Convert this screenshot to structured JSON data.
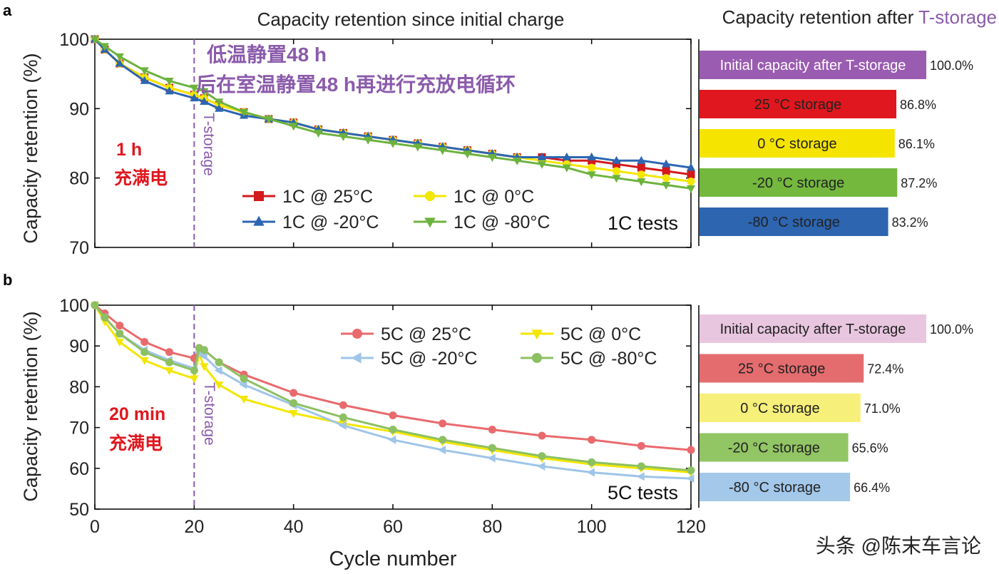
{
  "panel_a": {
    "label": "a",
    "title": "Capacity retention since initial charge",
    "ylabel": "Capacity retention (%)",
    "yticks": [
      "100",
      "90",
      "80",
      "70"
    ],
    "xticks": [
      "0",
      "20",
      "40",
      "60",
      "80",
      "100",
      "120"
    ],
    "marker_label": "T-storage",
    "tests_label": "1C tests",
    "overlay_line1": "低温静置48 h",
    "overlay_line2": "后在室温静置48 h再进行充放电循环",
    "charge_line1": "1 h",
    "charge_line2": "充满电"
  },
  "panel_b": {
    "label": "b",
    "ylabel": "Capacity retention (%)",
    "xlabel": "Cycle number",
    "yticks": [
      "100",
      "90",
      "80",
      "70",
      "60",
      "50"
    ],
    "xticks": [
      "0",
      "20",
      "40",
      "60",
      "80",
      "100",
      "120"
    ],
    "marker_label": "T-storage",
    "tests_label": "5C tests",
    "charge_line1": "20 min",
    "charge_line2": "充满电"
  },
  "bars_header": {
    "prefix": "Capacity retention after ",
    "highlight": "T-storage",
    "highlight_color": "#8b5bab"
  },
  "watermark": "头条 @陈末车言论",
  "chart_data": [
    {
      "type": "line",
      "title": "Capacity retention since initial charge",
      "xlabel": "",
      "ylabel": "Capacity retention (%)",
      "xlim": [
        0,
        120
      ],
      "ylim": [
        70,
        100
      ],
      "grid": false,
      "legend": "bottom-center",
      "vline_x": 20,
      "series": [
        {
          "name": "1C @  25°C",
          "color": "#d3191c",
          "marker": "square",
          "x": [
            0,
            2,
            5,
            10,
            15,
            20,
            22,
            25,
            30,
            35,
            40,
            45,
            50,
            55,
            60,
            65,
            70,
            75,
            80,
            85,
            90,
            95,
            100,
            105,
            110,
            115,
            120
          ],
          "y": [
            100,
            98.5,
            96.5,
            94.5,
            93,
            92,
            91.5,
            90.5,
            89.5,
            88.5,
            88,
            87,
            86.5,
            86,
            85.5,
            85,
            84.5,
            84,
            83.5,
            83,
            83,
            82.5,
            82.5,
            82,
            81.5,
            81,
            80.5
          ]
        },
        {
          "name": "1C @    0°C",
          "color": "#f3e600",
          "marker": "circle",
          "x": [
            0,
            2,
            5,
            10,
            15,
            20,
            22,
            25,
            30,
            35,
            40,
            45,
            50,
            55,
            60,
            65,
            70,
            75,
            80,
            85,
            90,
            95,
            100,
            105,
            110,
            115,
            120
          ],
          "y": [
            100,
            98.5,
            96.5,
            94.5,
            93,
            92,
            91.5,
            90.5,
            89.5,
            88.5,
            88,
            87,
            86.5,
            86,
            85.5,
            85,
            84.5,
            84,
            83.5,
            83,
            82.5,
            82,
            81.5,
            81,
            80.5,
            80,
            79.5
          ]
        },
        {
          "name": "1C @ -20°C",
          "color": "#2c66b1",
          "marker": "triangle-up",
          "x": [
            0,
            2,
            5,
            10,
            15,
            20,
            22,
            25,
            30,
            35,
            40,
            45,
            50,
            55,
            60,
            65,
            70,
            75,
            80,
            85,
            90,
            95,
            100,
            105,
            110,
            115,
            120
          ],
          "y": [
            100,
            98.5,
            96.5,
            94,
            92.5,
            91.5,
            91,
            90,
            89,
            88.5,
            88,
            87,
            86.5,
            86,
            85.5,
            85,
            84.5,
            84,
            83.5,
            83,
            83,
            83,
            83,
            82.5,
            82.5,
            82,
            81.5
          ]
        },
        {
          "name": "1C @ -80°C",
          "color": "#6cb33e",
          "marker": "triangle-down",
          "x": [
            0,
            2,
            5,
            10,
            15,
            20,
            22,
            25,
            30,
            35,
            40,
            45,
            50,
            55,
            60,
            65,
            70,
            75,
            80,
            85,
            90,
            95,
            100,
            105,
            110,
            115,
            120
          ],
          "y": [
            100,
            99,
            97.5,
            95.5,
            94,
            93,
            92.5,
            91,
            89.5,
            88.5,
            87.5,
            86.5,
            86,
            85.5,
            85,
            84.5,
            84,
            83.5,
            83,
            82.5,
            82,
            81.5,
            80.5,
            80,
            79.5,
            79,
            78.5
          ]
        }
      ]
    },
    {
      "type": "line",
      "title": "",
      "xlabel": "Cycle number",
      "ylabel": "Capacity retention (%)",
      "xlim": [
        0,
        120
      ],
      "ylim": [
        50,
        100
      ],
      "grid": false,
      "legend": "top-right",
      "vline_x": 20,
      "series": [
        {
          "name": "5C @  25°C",
          "color": "#e96a6d",
          "marker": "circle",
          "x": [
            0,
            2,
            5,
            10,
            15,
            20,
            21,
            22,
            25,
            30,
            40,
            50,
            60,
            70,
            80,
            90,
            100,
            110,
            120
          ],
          "y": [
            100,
            98,
            95,
            91,
            88.5,
            87,
            89.5,
            89,
            86,
            83,
            78.5,
            75.5,
            73,
            71,
            69.5,
            68,
            67,
            65.5,
            64.5
          ]
        },
        {
          "name": "5C @    0°C",
          "color": "#f3e600",
          "marker": "triangle-down",
          "x": [
            0,
            2,
            5,
            10,
            15,
            20,
            21,
            22,
            25,
            30,
            40,
            50,
            60,
            70,
            80,
            90,
            100,
            110,
            120
          ],
          "y": [
            100,
            96,
            91,
            86.5,
            84,
            82,
            88,
            85,
            80.5,
            77,
            73.5,
            71,
            69,
            66.5,
            64.5,
            62.5,
            61,
            60,
            59
          ]
        },
        {
          "name": "5C @ -20°C",
          "color": "#9fc5e8",
          "marker": "triangle-left",
          "x": [
            0,
            2,
            5,
            10,
            15,
            20,
            21,
            22,
            25,
            30,
            40,
            50,
            60,
            70,
            80,
            90,
            100,
            110,
            120
          ],
          "y": [
            100,
            97,
            93,
            89,
            86.5,
            84.5,
            88.5,
            87.5,
            84,
            80.5,
            75.5,
            70.5,
            67,
            64.5,
            62.5,
            60.5,
            59,
            58,
            57.5
          ]
        },
        {
          "name": "5C @ -80°C",
          "color": "#8cc063",
          "marker": "circle",
          "x": [
            0,
            2,
            5,
            10,
            15,
            20,
            21,
            22,
            25,
            30,
            40,
            50,
            60,
            70,
            80,
            90,
            100,
            110,
            120
          ],
          "y": [
            100,
            97,
            93,
            88.5,
            86,
            84,
            89.5,
            89,
            86,
            82,
            76,
            72.5,
            69.5,
            67,
            65,
            63,
            61.5,
            60.5,
            59.5
          ]
        }
      ]
    },
    {
      "type": "bar",
      "title": "Capacity retention after T-storage",
      "orientation": "horizontal",
      "categories": [
        "Initial capacity after T-storage",
        "25 °C storage",
        "0 °C storage",
        "-20 °C storage",
        "-80 °C storage"
      ],
      "values": [
        100.0,
        86.8,
        86.1,
        87.2,
        83.2
      ],
      "value_labels": [
        "100.0%",
        "86.8%",
        "86.1%",
        "87.2%",
        "83.2%"
      ],
      "colors": [
        "#9a5cb0",
        "#e0171e",
        "#f5e400",
        "#74b83e",
        "#2d65b1"
      ],
      "text_colors": [
        "#ffffff",
        "#222222",
        "#222222",
        "#222222",
        "#222222"
      ],
      "xlim": [
        0,
        100
      ]
    },
    {
      "type": "bar",
      "title": "",
      "orientation": "horizontal",
      "categories": [
        "Initial capacity after T-storage",
        "25 °C storage",
        "0 °C storage",
        "-20 °C storage",
        "-80 °C storage"
      ],
      "values": [
        100.0,
        72.4,
        71.0,
        65.6,
        66.4
      ],
      "value_labels": [
        "100.0%",
        "72.4%",
        "71.0%",
        "65.6%",
        "66.4%"
      ],
      "colors": [
        "#e9c6e0",
        "#e56c6e",
        "#f6ef7a",
        "#92c564",
        "#a3c8ea"
      ],
      "text_colors": [
        "#222222",
        "#222222",
        "#222222",
        "#222222",
        "#222222"
      ],
      "xlim": [
        0,
        100
      ]
    }
  ]
}
